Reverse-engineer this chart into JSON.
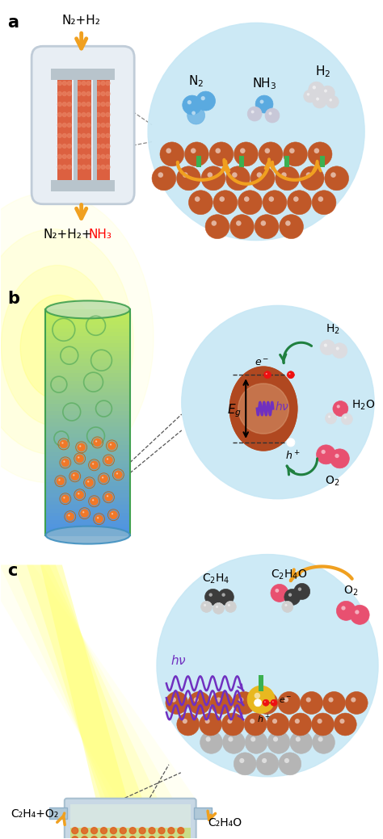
{
  "panel_a_label": "a",
  "panel_b_label": "b",
  "panel_c_label": "c",
  "panel_a_input": "N₂+H₂",
  "panel_a_output_black": "N₂+H₂+",
  "panel_a_output_red": "NH₃",
  "panel_c_input": "C₂H₄+O₂",
  "panel_c_output": "C₂H₄O",
  "colors": {
    "orange_arrow": "#F0A020",
    "brown_catalyst": "#C05828",
    "green_site": "#3CB050",
    "blue_sphere": "#5AAAE0",
    "light_blue_bg": "#C8E8F5",
    "pink_sphere": "#E85070",
    "red_dot": "#EE1111",
    "gold_yellow": "#E8B820",
    "gray_sphere": "#B0B0B0",
    "dark_gray_sphere": "#404040",
    "purple_wave": "#7030C0",
    "green_arrow": "#208040",
    "reactor_body": "#D8E8F0",
    "reactor_border": "#B0C8D8"
  }
}
